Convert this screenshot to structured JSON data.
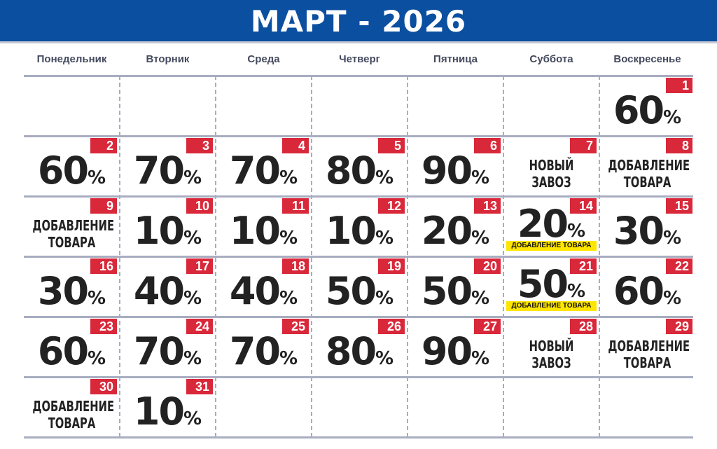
{
  "header": {
    "title": "МАРТ - 2026"
  },
  "percent_sign": "%",
  "weekdays": [
    "Понедельник",
    "Вторник",
    "Среда",
    "Четверг",
    "Пятница",
    "Суббота",
    "Воскресенье"
  ],
  "weeks": [
    [
      null,
      null,
      null,
      null,
      null,
      null,
      {
        "day": "1",
        "discount": "60"
      }
    ],
    [
      {
        "day": "2",
        "discount": "60"
      },
      {
        "day": "3",
        "discount": "70"
      },
      {
        "day": "4",
        "discount": "70"
      },
      {
        "day": "5",
        "discount": "80"
      },
      {
        "day": "6",
        "discount": "90"
      },
      {
        "day": "7",
        "text": [
          "НОВЫЙ",
          "ЗАВОЗ"
        ]
      },
      {
        "day": "8",
        "text": [
          "ДОБАВЛЕНИЕ",
          "ТОВАРА"
        ]
      }
    ],
    [
      {
        "day": "9",
        "text": [
          "ДОБАВЛЕНИЕ",
          "ТОВАРА"
        ]
      },
      {
        "day": "10",
        "discount": "10"
      },
      {
        "day": "11",
        "discount": "10"
      },
      {
        "day": "12",
        "discount": "10"
      },
      {
        "day": "13",
        "discount": "20"
      },
      {
        "day": "14",
        "discount": "20",
        "note": "ДОБАВЛЕНИЕ ТОВАРА"
      },
      {
        "day": "15",
        "discount": "30"
      }
    ],
    [
      {
        "day": "16",
        "discount": "30"
      },
      {
        "day": "17",
        "discount": "40"
      },
      {
        "day": "18",
        "discount": "40"
      },
      {
        "day": "19",
        "discount": "50"
      },
      {
        "day": "20",
        "discount": "50"
      },
      {
        "day": "21",
        "discount": "50",
        "note": "ДОБАВЛЕНИЕ ТОВАРА"
      },
      {
        "day": "22",
        "discount": "60"
      }
    ],
    [
      {
        "day": "23",
        "discount": "60"
      },
      {
        "day": "24",
        "discount": "70"
      },
      {
        "day": "25",
        "discount": "70"
      },
      {
        "day": "26",
        "discount": "80"
      },
      {
        "day": "27",
        "discount": "90"
      },
      {
        "day": "28",
        "text": [
          "НОВЫЙ",
          "ЗАВОЗ"
        ]
      },
      {
        "day": "29",
        "text": [
          "ДОБАВЛЕНИЕ",
          "ТОВАРА"
        ]
      }
    ],
    [
      {
        "day": "30",
        "text": [
          "ДОБАВЛЕНИЕ",
          "ТОВАРА"
        ]
      },
      {
        "day": "31",
        "discount": "10"
      },
      null,
      null,
      null,
      null,
      null
    ]
  ]
}
